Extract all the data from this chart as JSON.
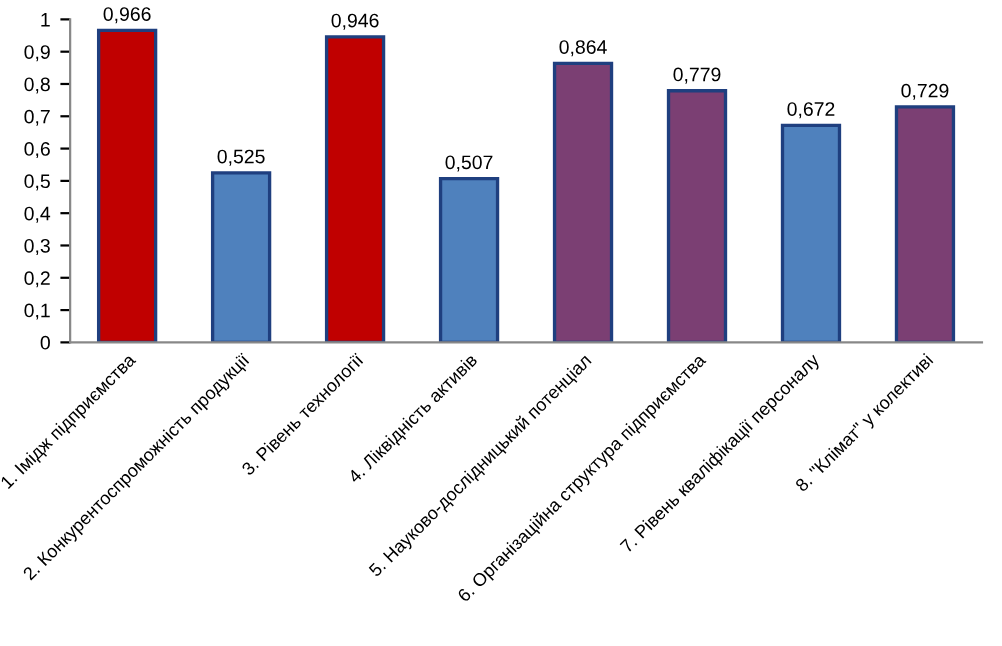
{
  "chart_data": {
    "type": "bar",
    "categories": [
      "1. Імідж підприємства",
      "2. Конкурентоспроможність продукції",
      "3. Рівень технології",
      "4. Ліквідність активів",
      "5. Науково-дослідницький потенціал",
      "6. Організаційна структура підприємства",
      "7. Рівень кваліфікації персоналу",
      "8. \"Клімат\" у колективі"
    ],
    "values": [
      0.966,
      0.525,
      0.946,
      0.507,
      0.864,
      0.779,
      0.672,
      0.729
    ],
    "colors": [
      "#c00000",
      "#4f81bd",
      "#c00000",
      "#4f81bd",
      "#7b3f73",
      "#7b3f73",
      "#4f81bd",
      "#7b3f73"
    ],
    "value_labels": [
      "0,966",
      "0,525",
      "0,946",
      "0,507",
      "0,864",
      "0,779",
      "0,672",
      "0,729"
    ],
    "ylim": [
      0,
      1
    ],
    "yticks": [
      0,
      {
        "value": 0.1,
        "label": "0,1"
      },
      {
        "value": 0.2,
        "label": "0,2"
      },
      {
        "value": 0.3,
        "label": "0,3"
      },
      {
        "value": 0.4,
        "label": "0,4"
      },
      {
        "value": 0.5,
        "label": "0,5"
      },
      {
        "value": 0.6,
        "label": "0,6"
      },
      {
        "value": 0.7,
        "label": "0,7"
      },
      {
        "value": 0.8,
        "label": "0,8"
      },
      {
        "value": 0.9,
        "label": "0,9"
      },
      1
    ],
    "grid": false,
    "legend": false
  }
}
